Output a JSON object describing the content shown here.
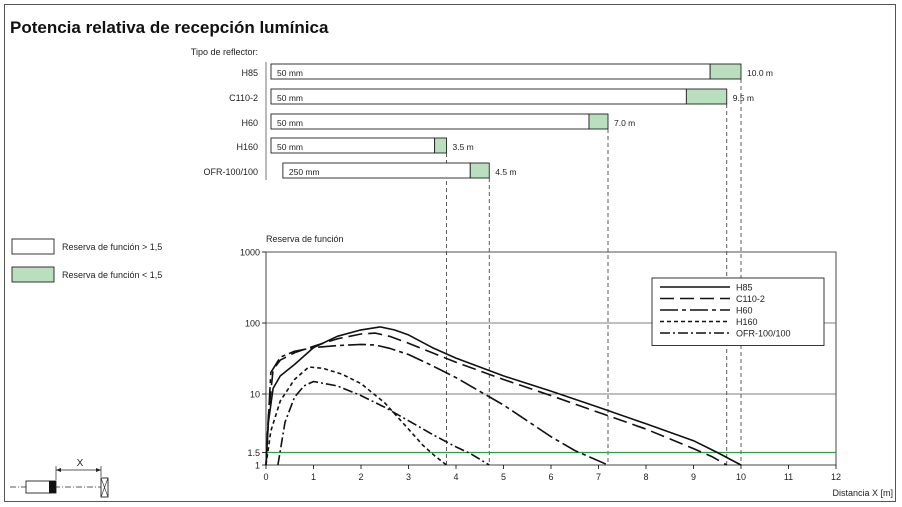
{
  "title": "Potencia relativa de recepción lumínica",
  "reflector_header": "Tipo de reflector:",
  "colors": {
    "reserve_high": "#ffffff",
    "reserve_low": "#b9dfbf",
    "threshold_line": "#2e9e4a",
    "axis": "#000000",
    "grid": "#555555"
  },
  "legend_boxes": [
    {
      "label": "Reserva de función > 1,5",
      "color": "#ffffff"
    },
    {
      "label": "Reserva de función < 1,5",
      "color": "#b9dfbf"
    }
  ],
  "reflectors": [
    {
      "name": "H85",
      "start_m": 0,
      "green_start_m": 9.35,
      "max_m": 10.0,
      "min_label": "50 mm",
      "max_label": "10.0 m"
    },
    {
      "name": "C110-2",
      "start_m": 0,
      "green_start_m": 8.85,
      "max_m": 9.7,
      "min_label": "50 mm",
      "max_label": "9.5 m"
    },
    {
      "name": "H60",
      "start_m": 0,
      "green_start_m": 6.8,
      "max_m": 7.2,
      "min_label": "50 mm",
      "max_label": "7.0 m"
    },
    {
      "name": "H160",
      "start_m": 0,
      "green_start_m": 3.55,
      "max_m": 3.8,
      "min_label": "50 mm",
      "max_label": "3.5 m"
    },
    {
      "name": "OFR-100/100",
      "start_m": 0.25,
      "green_start_m": 4.3,
      "max_m": 4.7,
      "min_label": "250 mm",
      "max_label": "4.5 m"
    }
  ],
  "chart_data": {
    "type": "line",
    "ylabel": "Reserva de función",
    "xlabel": "Distancia X [m]",
    "y_scale": "log",
    "xlim": [
      0,
      12
    ],
    "ylim": [
      1,
      1000
    ],
    "x_ticks": [
      0,
      1,
      2,
      3,
      4,
      5,
      6,
      7,
      8,
      9,
      10,
      11,
      12
    ],
    "y_tick_labels": [
      "1000",
      "100",
      "10",
      "1.5",
      "1"
    ],
    "threshold": 1.5,
    "legend_position": "top-right",
    "series": [
      {
        "name": "H85",
        "dash": "",
        "x": [
          0,
          0.05,
          0.15,
          0.3,
          0.6,
          1.0,
          1.5,
          2.0,
          2.4,
          2.7,
          3.0,
          3.5,
          4.0,
          5.0,
          6.0,
          7.0,
          8.0,
          9.0,
          9.5,
          10.0
        ],
        "y": [
          1,
          4,
          12,
          18,
          26,
          45,
          65,
          80,
          88,
          80,
          68,
          45,
          32,
          18,
          11,
          6.5,
          3.8,
          2.2,
          1.5,
          1
        ]
      },
      {
        "name": "C110-2",
        "dash": "14,6",
        "x": [
          0,
          0.05,
          0.15,
          0.3,
          0.6,
          1.0,
          1.5,
          2.0,
          2.3,
          2.6,
          3.0,
          3.5,
          4.0,
          5.0,
          6.0,
          7.0,
          8.0,
          9.0,
          9.4,
          9.7
        ],
        "y": [
          1,
          5,
          22,
          30,
          38,
          47,
          60,
          70,
          72,
          65,
          52,
          38,
          28,
          16,
          9.5,
          5.5,
          3.2,
          1.7,
          1.3,
          1
        ]
      },
      {
        "name": "H60",
        "dash": "18,4,4,4",
        "x": [
          0,
          0.1,
          0.3,
          0.6,
          1.0,
          1.5,
          2.0,
          2.3,
          2.6,
          3.0,
          3.5,
          4.0,
          5.0,
          6.0,
          6.5,
          7.2
        ],
        "y": [
          1,
          20,
          33,
          40,
          45,
          48,
          50,
          49,
          44,
          36,
          25,
          17,
          7,
          2.5,
          1.6,
          1
        ]
      },
      {
        "name": "H160",
        "dash": "4,3",
        "x": [
          0,
          0.1,
          0.3,
          0.6,
          0.9,
          1.2,
          1.6,
          2.0,
          2.5,
          3.0,
          3.3,
          3.55,
          3.8
        ],
        "y": [
          1,
          3,
          8,
          16,
          24,
          23,
          19,
          14,
          7.5,
          3.2,
          1.9,
          1.35,
          1
        ]
      },
      {
        "name": "OFR-100/100",
        "dash": "10,3,2,3",
        "x": [
          0.25,
          0.4,
          0.6,
          0.8,
          1.0,
          1.5,
          2.0,
          2.5,
          3.0,
          3.5,
          4.0,
          4.3,
          4.7
        ],
        "y": [
          1,
          4,
          9,
          13,
          15,
          13,
          9.5,
          6.5,
          4.2,
          2.7,
          1.8,
          1.45,
          1
        ]
      }
    ]
  },
  "sketch": {
    "x_label": "X"
  }
}
